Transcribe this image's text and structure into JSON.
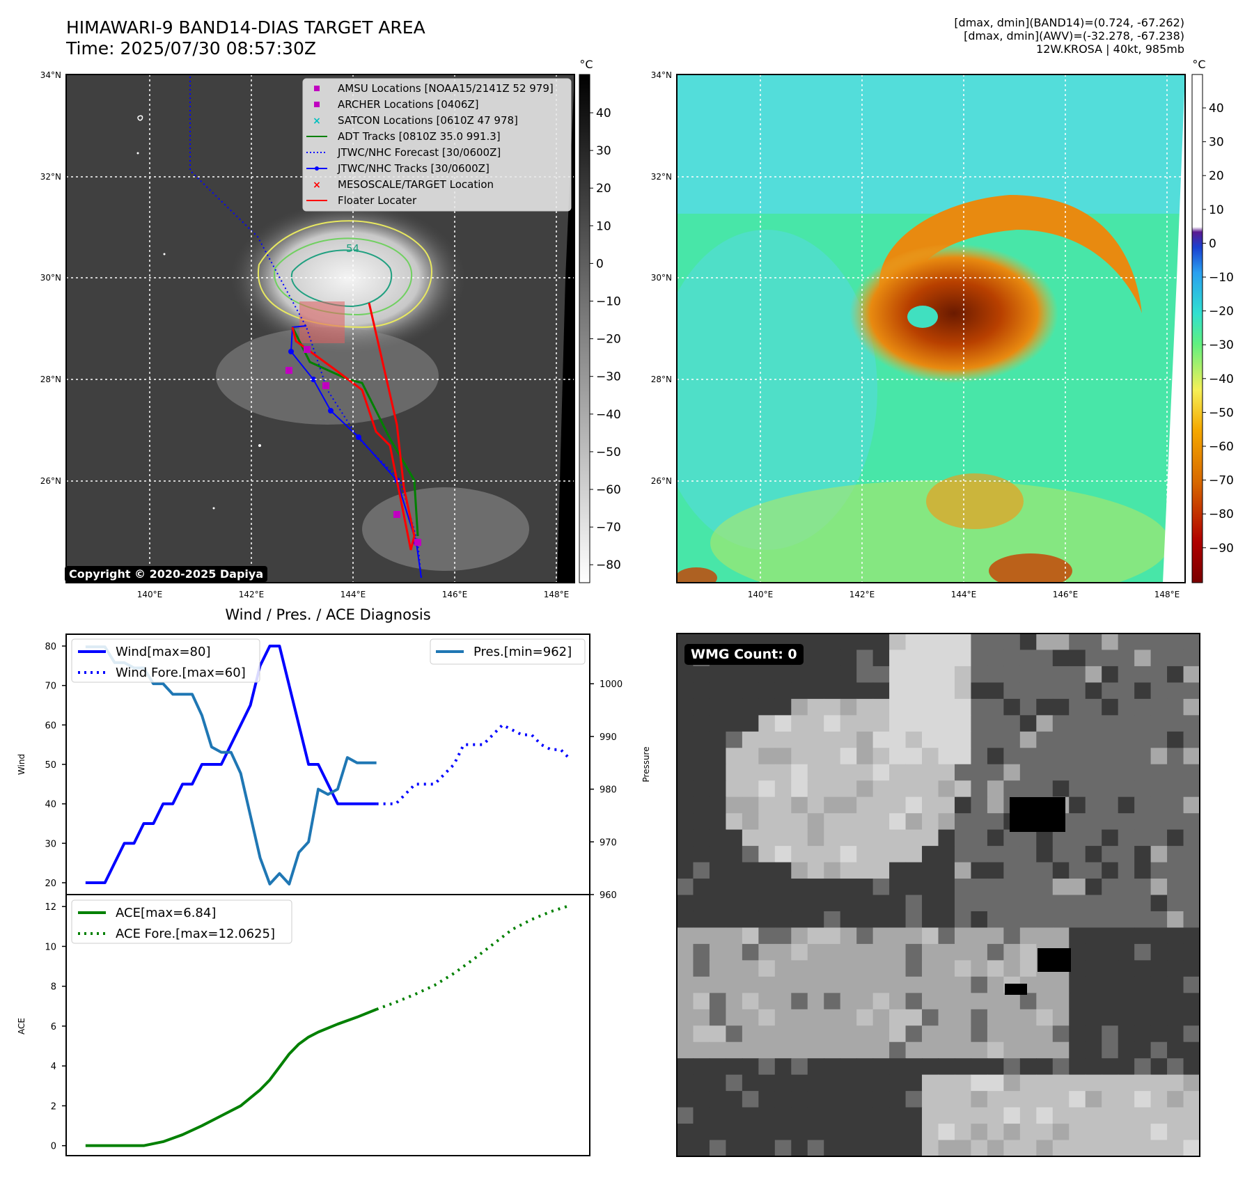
{
  "header": {
    "title_line1": "HIMAWARI-9 BAND14-DIAS TARGET AREA",
    "title_line2": "Time: 2025/07/30 08:57:30Z",
    "stats_line1": "[dmax, dmin](BAND14)=(0.724, -67.262)",
    "stats_line2": "[dmax, dmin](AWV)=(-32.278, -67.238)",
    "stats_line3": "12W.KROSA | 40kt, 985mb"
  },
  "maps": {
    "lat_labels": [
      "34°N",
      "32°N",
      "30°N",
      "28°N",
      "26°N"
    ],
    "lon_labels": [
      "140°E",
      "142°E",
      "144°E",
      "146°E",
      "148°E"
    ],
    "copyright": "Copyright © 2020-2025 Dapiya",
    "contour_label": "54",
    "legend": [
      {
        "label": "AMSU Locations [NOAA15/2141Z 52 979]",
        "color": "#c000c0",
        "marker": "square"
      },
      {
        "label": "ARCHER Locations [0406Z]",
        "color": "#c000c0",
        "marker": "square"
      },
      {
        "label": "SATCON Locations [0610Z 47 978]",
        "color": "#00bfbf",
        "marker": "x"
      },
      {
        "label": "ADT Tracks [0810Z 35.0 991.3]",
        "color": "#008000",
        "marker": "line"
      },
      {
        "label": "JTWC/NHC Forecast [30/0600Z]",
        "color": "#0000ff",
        "marker": "dotted"
      },
      {
        "label": "JTWC/NHC Tracks [30/0600Z]",
        "color": "#0000ff",
        "marker": "line-dot"
      },
      {
        "label": "MESOSCALE/TARGET Location",
        "color": "#ff0000",
        "marker": "x"
      },
      {
        "label": "Floater Locater",
        "color": "#ff0000",
        "marker": "line"
      }
    ],
    "colorbar1": {
      "unit": "°C",
      "ticks": [
        "40",
        "30",
        "20",
        "10",
        "0",
        "−10",
        "−20",
        "−30",
        "−40",
        "−50",
        "−60",
        "−70",
        "−80"
      ]
    },
    "colorbar2": {
      "unit": "°C",
      "ticks": [
        "40",
        "30",
        "20",
        "10",
        "0",
        "−10",
        "−20",
        "−30",
        "−40",
        "−50",
        "−60",
        "−70",
        "−80",
        "−90"
      ]
    }
  },
  "wmg": {
    "label": "WMG Count: 0"
  },
  "chart_data": [
    {
      "type": "line",
      "title": "Wind / Pres. / ACE Diagnosis",
      "ylabel": "Wind",
      "ylabel_right": "Pressure",
      "ylim": [
        17,
        83
      ],
      "ylim_right": [
        960,
        1009.4
      ],
      "yticks": [
        20,
        30,
        40,
        50,
        60,
        70,
        80
      ],
      "yticks_right": [
        960,
        970,
        980,
        990,
        1000
      ],
      "legend_left": [
        "Wind[max=80]",
        "Wind Fore.[max=60]"
      ],
      "legend_right": [
        "Pres.[min=962]"
      ],
      "series": [
        {
          "name": "Wind[max=80]",
          "color": "#0000ff",
          "style": "solid",
          "x": [
            0,
            1,
            2,
            3,
            4,
            5,
            6,
            7,
            8,
            9,
            10,
            11,
            12,
            13,
            14,
            15,
            16,
            17,
            18,
            19,
            20,
            21
          ],
          "values": [
            20,
            20,
            20,
            25,
            30,
            30,
            35,
            35,
            40,
            40,
            45,
            45,
            50,
            50,
            50,
            55,
            60,
            65,
            75,
            80,
            80,
            70
          ]
        },
        {
          "name": "",
          "color": "#0000ff",
          "style": "solid",
          "x": [
            21,
            22,
            23,
            24,
            25,
            26,
            27,
            28,
            29,
            30
          ],
          "values": [
            70,
            60,
            50,
            50,
            45,
            40,
            40,
            40,
            40,
            40
          ]
        },
        {
          "name": "Wind Fore.[max=60]",
          "color": "#0000ff",
          "style": "dotted",
          "x": [
            30,
            31,
            32,
            33,
            34,
            35,
            36,
            37,
            38,
            39,
            40,
            41,
            42,
            43,
            44,
            45,
            46,
            47,
            48,
            49,
            50
          ],
          "values": [
            40,
            40,
            40,
            42.5,
            45,
            45,
            45,
            47.5,
            50,
            55,
            55,
            55,
            57.5,
            60,
            58.75,
            57.5,
            57.5,
            55,
            53.75,
            53.75,
            51.25
          ]
        },
        {
          "name": "Pres.[min=962]",
          "color": "#1f77b4",
          "style": "solid",
          "axis": "right",
          "x": [
            0,
            1,
            2,
            3,
            4,
            5,
            6,
            7,
            8,
            9,
            10,
            11,
            12,
            13,
            14,
            15,
            16,
            17,
            18,
            19,
            20,
            21,
            22,
            23,
            24,
            25,
            26,
            27,
            28,
            29,
            30
          ],
          "values": [
            1007,
            1007,
            1007,
            1004,
            1004,
            1003,
            1003,
            1000,
            1000,
            998,
            998,
            998,
            994,
            988,
            987,
            987,
            983,
            975,
            967,
            962,
            964,
            962,
            968,
            970,
            980,
            979,
            980,
            986,
            985,
            985,
            985
          ]
        }
      ]
    },
    {
      "type": "line",
      "ylabel": "ACE",
      "ylim": [
        -0.5,
        12.6
      ],
      "yticks": [
        0,
        2,
        4,
        6,
        8,
        10,
        12
      ],
      "legend": [
        "ACE[max=6.84]",
        "ACE Fore.[max=12.0625]"
      ],
      "series": [
        {
          "name": "ACE[max=6.84]",
          "color": "#008000",
          "style": "solid",
          "x": [
            0,
            2,
            4,
            6,
            8,
            10,
            12,
            14,
            16,
            18,
            19,
            20,
            21,
            22,
            23,
            24,
            26,
            28,
            30
          ],
          "values": [
            0,
            0,
            0,
            0,
            0.2,
            0.55,
            1,
            1.5,
            2,
            2.8,
            3.3,
            3.95,
            4.6,
            5.1,
            5.45,
            5.7,
            6.1,
            6.45,
            6.84
          ]
        },
        {
          "name": "ACE Fore.[max=12.0625]",
          "color": "#008000",
          "style": "dotted",
          "x": [
            30,
            32,
            34,
            36,
            38,
            40,
            42,
            44,
            46,
            48,
            50
          ],
          "values": [
            6.84,
            7.2,
            7.6,
            8.05,
            8.65,
            9.35,
            10.1,
            10.85,
            11.35,
            11.75,
            12.06
          ]
        }
      ]
    }
  ]
}
